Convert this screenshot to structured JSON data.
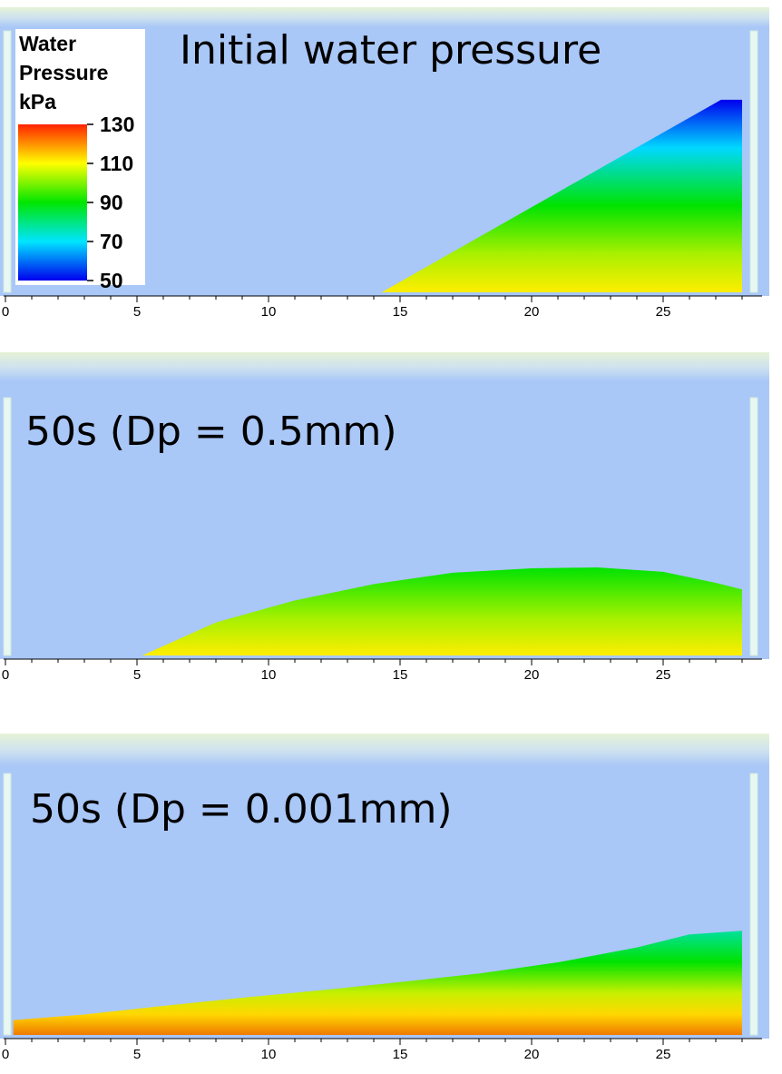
{
  "chart_data": [
    {
      "type": "heatmap",
      "title": "Initial water pressure",
      "xlim": [
        0,
        28.3
      ],
      "x_ticks": [
        "0",
        "5",
        "10",
        "15",
        "20",
        "25"
      ],
      "x_tick_values": [
        0,
        5,
        10,
        15,
        20,
        25
      ],
      "colorbar": {
        "title_lines": [
          "Water",
          "Pressure",
          "kPa"
        ],
        "range": [
          50,
          130
        ],
        "tick_values": [
          130,
          110,
          90,
          70,
          50
        ],
        "tick_labels": [
          "130",
          "110",
          "90",
          "70",
          "50"
        ],
        "colors": [
          "#0000ee",
          "#00e5ff",
          "#00e600",
          "#ffff00",
          "#ff2200"
        ]
      },
      "water_profile": {
        "description_free": true,
        "x": [
          14.3,
          27.2,
          28.0,
          28.0
        ],
        "surface_height": [
          0.0,
          4.2,
          4.2,
          0.0
        ],
        "pressure_top_kPa": 50,
        "pressure_bottom_kPa": 110
      }
    },
    {
      "type": "heatmap",
      "title": "50s (Dp = 0.5mm)",
      "xlim": [
        0,
        28.3
      ],
      "x_ticks": [
        "0",
        "5",
        "10",
        "15",
        "20",
        "25"
      ],
      "x_tick_values": [
        0,
        5,
        10,
        15,
        20,
        25
      ],
      "water_profile": {
        "x": [
          5.2,
          8,
          11,
          14,
          17,
          20,
          22.5,
          25,
          27,
          28.0
        ],
        "surface_height": [
          0.0,
          0.75,
          1.25,
          1.62,
          1.88,
          1.98,
          2.0,
          1.9,
          1.65,
          1.5
        ],
        "pressure_top_kPa": 90,
        "pressure_bottom_kPa": 110
      }
    },
    {
      "type": "heatmap",
      "title": "50s (Dp = 0.001mm)",
      "xlim": [
        0,
        28.3
      ],
      "x_ticks": [
        "0",
        "5",
        "10",
        "15",
        "20",
        "25"
      ],
      "x_tick_values": [
        0,
        5,
        10,
        15,
        20,
        25
      ],
      "water_profile": {
        "x": [
          0.3,
          3,
          6,
          9,
          12,
          15,
          18,
          21,
          24,
          26,
          28.0
        ],
        "surface_height": [
          0.4,
          0.55,
          0.78,
          1.0,
          1.2,
          1.42,
          1.65,
          1.95,
          2.35,
          2.7,
          2.8
        ],
        "pressure_top_kPa": 85,
        "pressure_bottom_kPa": 125
      }
    }
  ]
}
